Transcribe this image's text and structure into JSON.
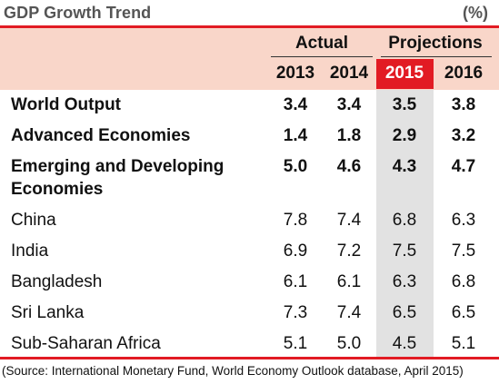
{
  "title": "GDP Growth Trend",
  "unit": "(%)",
  "header": {
    "groups": [
      "Actual",
      "Projections"
    ],
    "years": [
      "2013",
      "2014",
      "2015",
      "2016"
    ],
    "highlight_color": "#e21b23",
    "band_color": "#f9d6c9"
  },
  "rows": [
    {
      "label": "World Output",
      "values": [
        "3.4",
        "3.4",
        "3.5",
        "3.8"
      ],
      "bold": true
    },
    {
      "label": "Advanced Economies",
      "values": [
        "1.4",
        "1.8",
        "2.9",
        "3.2"
      ],
      "bold": true
    },
    {
      "label": "Emerging and Developing",
      "label2": "Economies",
      "values": [
        "5.0",
        "4.6",
        "4.3",
        "4.7"
      ],
      "bold": true
    },
    {
      "label": "China",
      "values": [
        "7.8",
        "7.4",
        "6.8",
        "6.3"
      ],
      "bold": false
    },
    {
      "label": "India",
      "values": [
        "6.9",
        "7.2",
        "7.5",
        "7.5"
      ],
      "bold": false
    },
    {
      "label": "Bangladesh",
      "values": [
        "6.1",
        "6.1",
        "6.3",
        "6.8"
      ],
      "bold": false
    },
    {
      "label": "Sri Lanka",
      "values": [
        "7.3",
        "7.4",
        "6.5",
        "6.5"
      ],
      "bold": false
    },
    {
      "label": "Sub-Saharan Africa",
      "values": [
        "5.1",
        "5.0",
        "4.5",
        "5.1"
      ],
      "bold": false
    }
  ],
  "source": "(Source: International Monetary Fund, World Economy Outlook database, April 2015)"
}
